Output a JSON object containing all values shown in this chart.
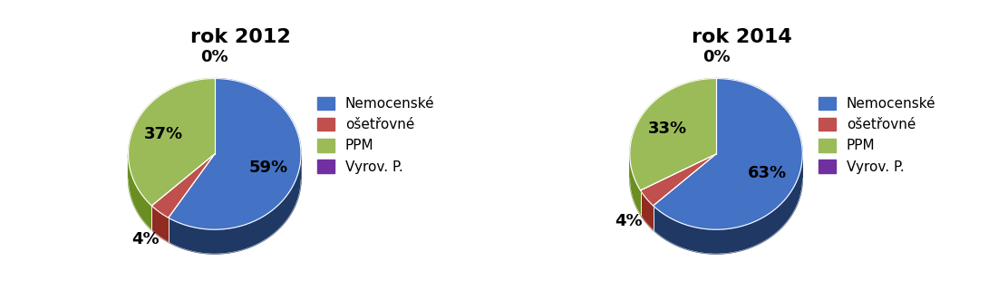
{
  "chart1": {
    "title": "rok 2012",
    "values": [
      59,
      4,
      37,
      0
    ],
    "labels": [
      "59%",
      "4%",
      "37%",
      "0%"
    ],
    "colors_top": [
      "#4472C4",
      "#C0504D",
      "#9BBB59",
      "#7030A0"
    ],
    "colors_side": [
      "#1F3864",
      "#922B21",
      "#6B8E23",
      "#4A235A"
    ],
    "legend_labels": [
      "Nemocenské",
      "ošetřovné",
      "PPM",
      "Vyrov. P."
    ]
  },
  "chart2": {
    "title": "rok 2014",
    "values": [
      63,
      4,
      33,
      0
    ],
    "labels": [
      "63%",
      "4%",
      "33%",
      "0%"
    ],
    "colors_top": [
      "#4472C4",
      "#C0504D",
      "#9BBB59",
      "#7030A0"
    ],
    "colors_side": [
      "#1F3864",
      "#922B21",
      "#6B8E23",
      "#4A235A"
    ],
    "legend_labels": [
      "Nemocenské",
      "ošetřovné",
      "PPM",
      "Vyrov. P."
    ]
  },
  "background_color": "#FFFFFF",
  "title_fontsize": 16,
  "label_fontsize": 13,
  "legend_fontsize": 11
}
